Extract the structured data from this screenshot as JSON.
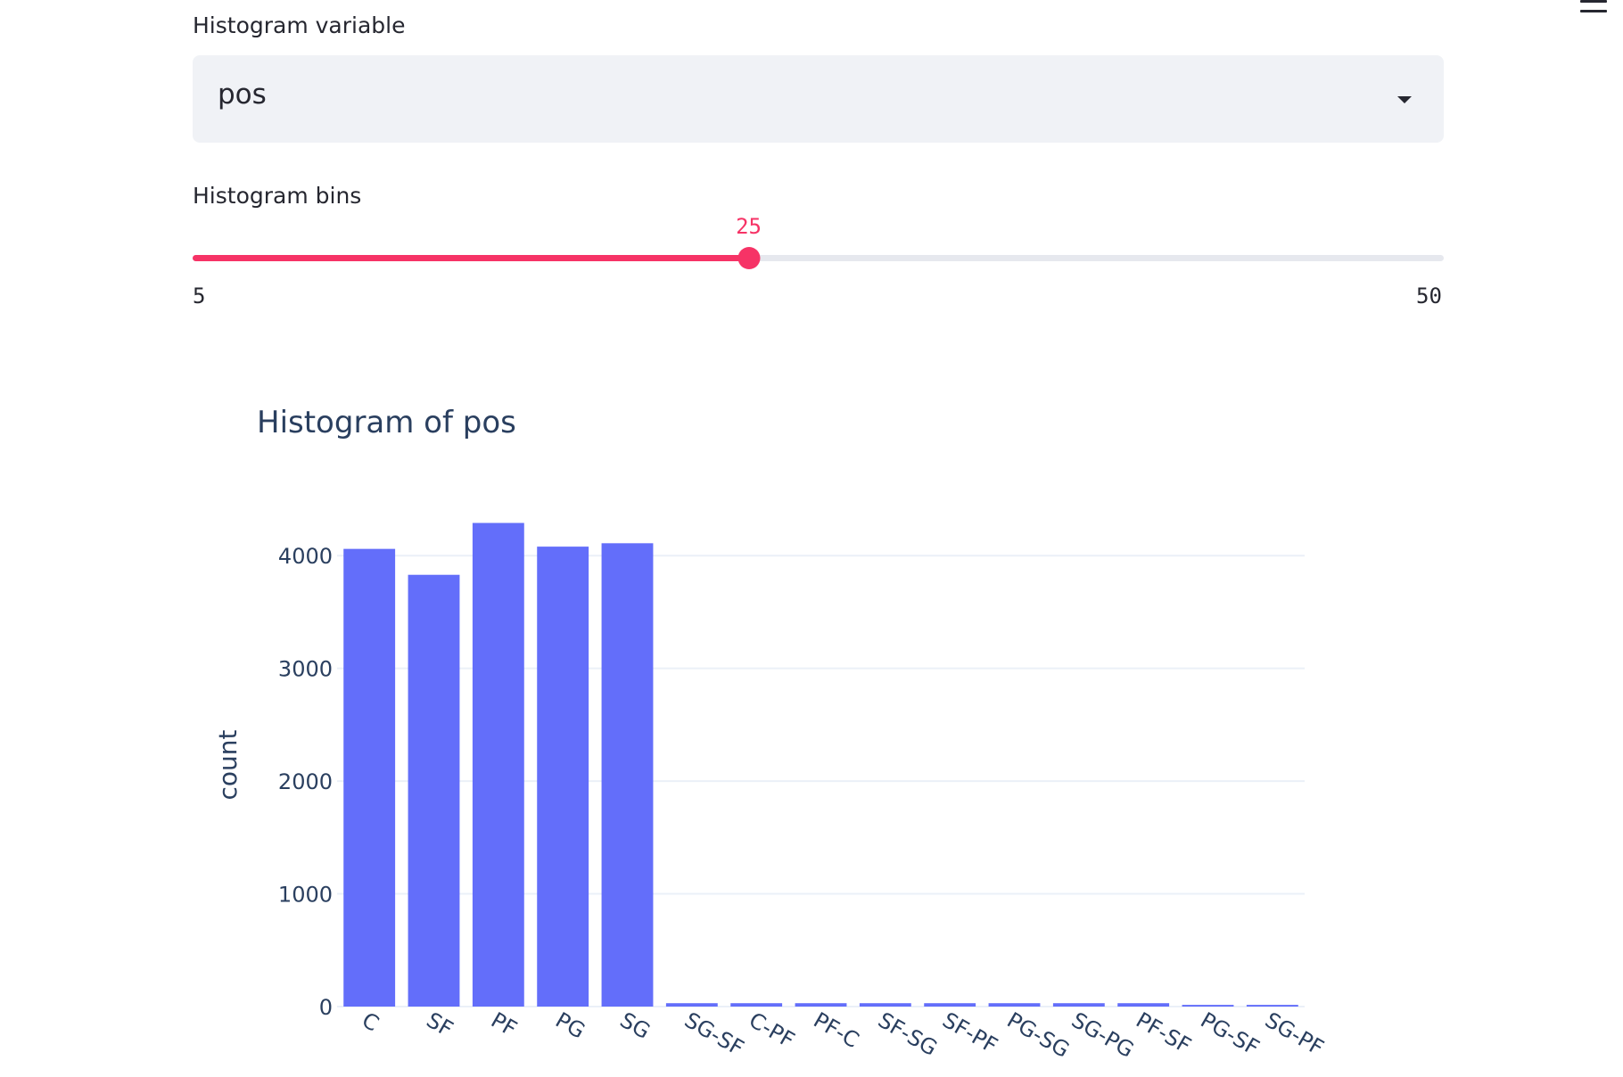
{
  "app": {
    "menu_icon": "hamburger-menu-icon"
  },
  "histogram_variable": {
    "label": "Histogram variable",
    "selected": "pos",
    "dropdown_icon": "caret-down-icon"
  },
  "histogram_bins": {
    "label": "Histogram bins",
    "value": 25,
    "min": 5,
    "max": 50,
    "value_text": "25",
    "min_text": "5",
    "max_text": "50",
    "accent_color": "#f63366",
    "track_color": "#e6e8ee"
  },
  "chart_data": {
    "type": "bar",
    "title": "Histogram of pos",
    "xlabel": "",
    "ylabel": "count",
    "categories": [
      "C",
      "SF",
      "PF",
      "PG",
      "SG",
      "SG-SF",
      "C-PF",
      "PF-C",
      "SF-SG",
      "SF-PF",
      "PG-SG",
      "SG-PG",
      "PF-SF",
      "PG-SF",
      "SG-PF"
    ],
    "values": [
      4060,
      3830,
      4290,
      4080,
      4110,
      30,
      30,
      30,
      30,
      30,
      30,
      30,
      30,
      15,
      15
    ],
    "ylim": [
      0,
      4500
    ],
    "yticks": [
      0,
      1000,
      2000,
      3000,
      4000
    ],
    "ytick_labels": [
      "0",
      "1000",
      "2000",
      "3000",
      "4000"
    ],
    "grid": true,
    "bar_color": "#636efa"
  }
}
